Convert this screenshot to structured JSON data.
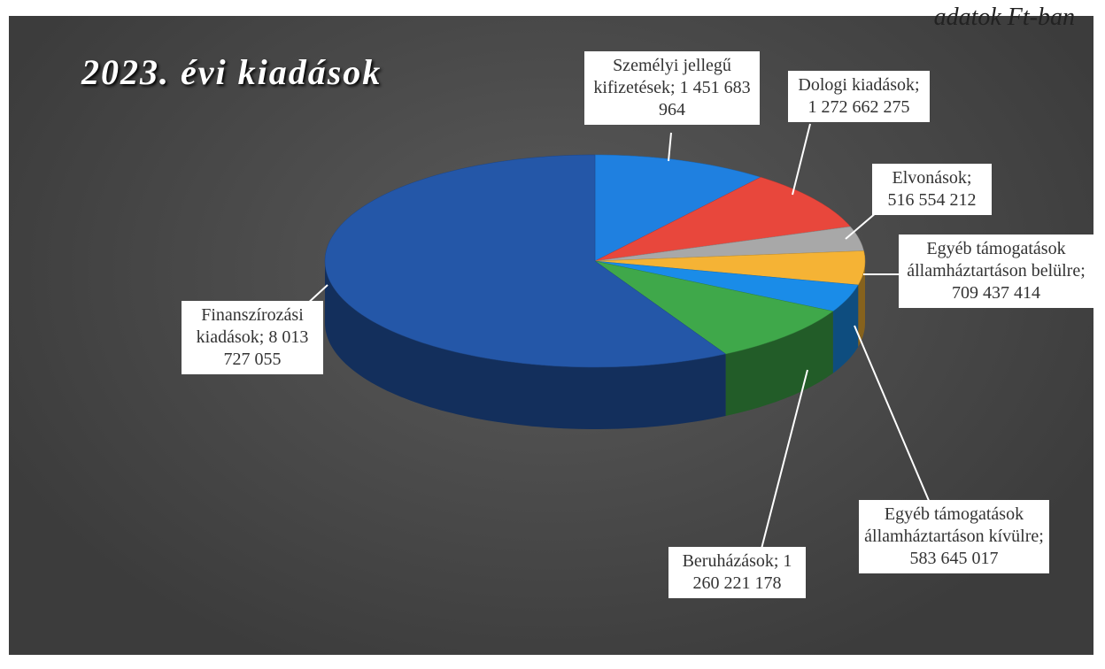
{
  "note": "adatok Ft-ban",
  "chart_data": {
    "type": "pie",
    "title": "2023. évi kiadások",
    "categories": [
      "Személyi jellegű kifizetések;",
      "Dologi kiadások;",
      "Elvonások;",
      "Egyéb támogatások államháztartáson belülre;",
      "Egyéb támogatások államháztartáson kívülre;",
      "Beruházások;",
      "Finanszírozási kiadások;"
    ],
    "values": [
      1451683964,
      1272662275,
      516554212,
      709437414,
      583645017,
      1260221178,
      8013727055
    ],
    "value_labels": [
      "1 451 683 964",
      "1 272 662 275",
      "516 554 212",
      "709 437 414",
      "583 645 017",
      "1 260 221 178",
      "8 013 727 055"
    ],
    "colors": [
      "#1f80e0",
      "#e8473c",
      "#a8a8a8",
      "#f5b335",
      "#1a8ce8",
      "#3fa84a",
      "#2457a8"
    ],
    "three_d": true
  }
}
